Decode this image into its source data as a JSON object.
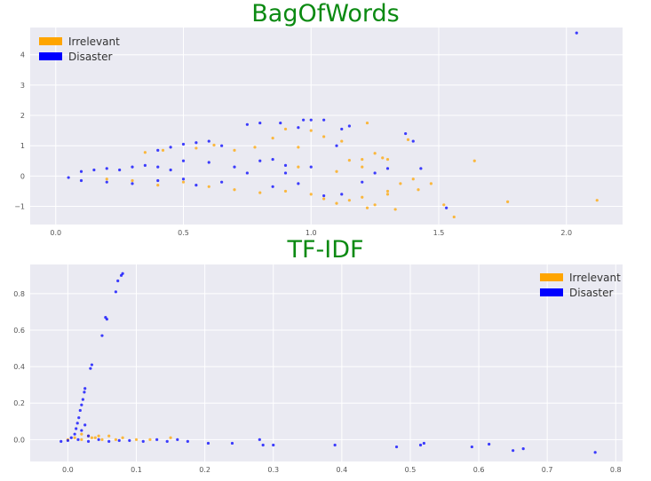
{
  "chart_data": [
    {
      "type": "scatter",
      "title": "BagOfWords",
      "xlabel": "",
      "ylabel": "",
      "xlim": [
        -0.1,
        2.22
      ],
      "ylim": [
        -1.6,
        4.9
      ],
      "xticks": [
        "0.0",
        "0.5",
        "1.0",
        "1.5",
        "2.0"
      ],
      "yticks": [
        "−1",
        "0",
        "1",
        "2",
        "3",
        "4"
      ],
      "grid": true,
      "legend_position": "top-left",
      "series": [
        {
          "name": "Irrelevant",
          "color": "#FFA500",
          "points": [
            [
              0.35,
              0.78
            ],
            [
              0.42,
              0.85
            ],
            [
              0.55,
              0.92
            ],
            [
              0.62,
              1.02
            ],
            [
              0.7,
              0.85
            ],
            [
              0.78,
              0.95
            ],
            [
              0.85,
              1.25
            ],
            [
              0.9,
              1.55
            ],
            [
              0.95,
              0.95
            ],
            [
              1.0,
              1.5
            ],
            [
              1.05,
              1.3
            ],
            [
              1.12,
              1.15
            ],
            [
              1.15,
              0.52
            ],
            [
              1.2,
              0.55
            ],
            [
              1.25,
              0.75
            ],
            [
              1.22,
              1.75
            ],
            [
              1.3,
              0.55
            ],
            [
              1.38,
              1.2
            ],
            [
              1.28,
              0.6
            ],
            [
              0.6,
              -0.35
            ],
            [
              0.7,
              -0.45
            ],
            [
              0.8,
              -0.55
            ],
            [
              0.9,
              -0.5
            ],
            [
              1.0,
              -0.6
            ],
            [
              1.05,
              -0.75
            ],
            [
              1.1,
              -0.9
            ],
            [
              1.15,
              -0.8
            ],
            [
              1.2,
              -0.7
            ],
            [
              1.25,
              -0.95
            ],
            [
              1.3,
              -0.6
            ],
            [
              1.35,
              -0.25
            ],
            [
              1.4,
              -0.1
            ],
            [
              1.42,
              -0.45
            ],
            [
              1.47,
              -0.25
            ],
            [
              1.52,
              -0.95
            ],
            [
              1.56,
              -1.35
            ],
            [
              1.64,
              0.5
            ],
            [
              1.77,
              -0.85
            ],
            [
              2.12,
              -0.8
            ],
            [
              0.95,
              0.3
            ],
            [
              1.1,
              0.15
            ],
            [
              1.2,
              0.3
            ],
            [
              1.3,
              -0.5
            ],
            [
              1.22,
              -1.05
            ],
            [
              1.33,
              -1.1
            ],
            [
              0.5,
              -0.2
            ],
            [
              0.3,
              -0.15
            ],
            [
              0.2,
              -0.1
            ],
            [
              0.4,
              -0.3
            ]
          ]
        },
        {
          "name": "Disaster",
          "color": "#0000FF",
          "points": [
            [
              2.04,
              4.72
            ],
            [
              0.4,
              0.85
            ],
            [
              0.45,
              0.95
            ],
            [
              0.5,
              1.05
            ],
            [
              0.55,
              1.1
            ],
            [
              0.6,
              1.15
            ],
            [
              0.65,
              1.0
            ],
            [
              0.75,
              1.7
            ],
            [
              0.8,
              1.75
            ],
            [
              0.88,
              1.75
            ],
            [
              0.95,
              1.6
            ],
            [
              0.97,
              1.85
            ],
            [
              1.0,
              1.85
            ],
            [
              1.05,
              1.85
            ],
            [
              1.1,
              1.0
            ],
            [
              1.12,
              1.55
            ],
            [
              1.15,
              1.65
            ],
            [
              1.37,
              1.4
            ],
            [
              1.4,
              1.15
            ],
            [
              1.43,
              0.25
            ],
            [
              1.53,
              -1.05
            ],
            [
              1.3,
              0.25
            ],
            [
              1.0,
              0.3
            ],
            [
              0.9,
              0.35
            ],
            [
              0.95,
              -0.25
            ],
            [
              1.05,
              -0.65
            ],
            [
              1.12,
              -0.6
            ],
            [
              1.2,
              -0.2
            ],
            [
              1.25,
              0.1
            ],
            [
              0.7,
              0.3
            ],
            [
              0.6,
              0.45
            ],
            [
              0.5,
              0.5
            ],
            [
              0.8,
              0.5
            ],
            [
              0.85,
              0.55
            ],
            [
              0.1,
              0.15
            ],
            [
              0.15,
              0.2
            ],
            [
              0.2,
              0.25
            ],
            [
              0.25,
              0.2
            ],
            [
              0.3,
              0.3
            ],
            [
              0.35,
              0.35
            ],
            [
              0.4,
              0.3
            ],
            [
              0.45,
              0.2
            ],
            [
              0.05,
              -0.05
            ],
            [
              0.1,
              -0.15
            ],
            [
              0.2,
              -0.2
            ],
            [
              0.3,
              -0.25
            ],
            [
              0.4,
              -0.15
            ],
            [
              0.5,
              -0.1
            ],
            [
              0.55,
              -0.3
            ],
            [
              0.65,
              -0.2
            ],
            [
              0.75,
              0.1
            ],
            [
              0.85,
              -0.35
            ],
            [
              0.9,
              0.1
            ]
          ]
        }
      ]
    },
    {
      "type": "scatter",
      "title": "TF-IDF",
      "xlabel": "",
      "ylabel": "",
      "xlim": [
        -0.055,
        0.81
      ],
      "ylim": [
        -0.12,
        0.96
      ],
      "xticks": [
        "0.0",
        "0.1",
        "0.2",
        "0.3",
        "0.4",
        "0.5",
        "0.6",
        "0.7",
        "0.8"
      ],
      "yticks": [
        "0.0",
        "0.2",
        "0.4",
        "0.6",
        "0.8"
      ],
      "grid": true,
      "legend_position": "top-right",
      "series": [
        {
          "name": "Irrelevant",
          "color": "#FFA500",
          "points": [
            [
              0.0,
              0.0
            ],
            [
              0.01,
              0.01
            ],
            [
              0.02,
              0.0
            ],
            [
              0.03,
              0.02
            ],
            [
              0.04,
              0.01
            ],
            [
              0.05,
              0.0
            ],
            [
              0.06,
              0.02
            ],
            [
              0.07,
              0.0
            ],
            [
              0.08,
              0.01
            ],
            [
              0.1,
              0.0
            ],
            [
              0.12,
              0.0
            ],
            [
              0.15,
              0.01
            ],
            [
              0.02,
              0.03
            ],
            [
              0.035,
              0.01
            ],
            [
              0.045,
              0.02
            ]
          ]
        },
        {
          "name": "Disaster",
          "color": "#0000FF",
          "points": [
            [
              0.08,
              0.91
            ],
            [
              0.078,
              0.9
            ],
            [
              0.07,
              0.81
            ],
            [
              0.073,
              0.87
            ],
            [
              0.055,
              0.67
            ],
            [
              0.057,
              0.66
            ],
            [
              0.05,
              0.57
            ],
            [
              0.035,
              0.41
            ],
            [
              0.033,
              0.39
            ],
            [
              0.025,
              0.28
            ],
            [
              0.024,
              0.26
            ],
            [
              0.022,
              0.22
            ],
            [
              0.02,
              0.19
            ],
            [
              0.018,
              0.16
            ],
            [
              0.016,
              0.12
            ],
            [
              0.014,
              0.09
            ],
            [
              0.012,
              0.06
            ],
            [
              0.01,
              0.03
            ],
            [
              0.005,
              0.01
            ],
            [
              -0.01,
              -0.01
            ],
            [
              0.0,
              -0.005
            ],
            [
              0.015,
              0.0
            ],
            [
              0.03,
              -0.01
            ],
            [
              0.045,
              0.0
            ],
            [
              0.06,
              -0.01
            ],
            [
              0.075,
              -0.005
            ],
            [
              0.09,
              -0.005
            ],
            [
              0.11,
              -0.01
            ],
            [
              0.13,
              0.0
            ],
            [
              0.145,
              -0.01
            ],
            [
              0.16,
              0.0
            ],
            [
              0.175,
              -0.01
            ],
            [
              0.205,
              -0.02
            ],
            [
              0.24,
              -0.02
            ],
            [
              0.285,
              -0.03
            ],
            [
              0.28,
              0.0
            ],
            [
              0.3,
              -0.03
            ],
            [
              0.39,
              -0.03
            ],
            [
              0.48,
              -0.04
            ],
            [
              0.515,
              -0.03
            ],
            [
              0.52,
              -0.02
            ],
            [
              0.59,
              -0.04
            ],
            [
              0.615,
              -0.025
            ],
            [
              0.65,
              -0.06
            ],
            [
              0.665,
              -0.05
            ],
            [
              0.77,
              -0.07
            ],
            [
              0.02,
              0.05
            ],
            [
              0.025,
              0.08
            ],
            [
              0.03,
              0.02
            ]
          ]
        }
      ]
    }
  ]
}
